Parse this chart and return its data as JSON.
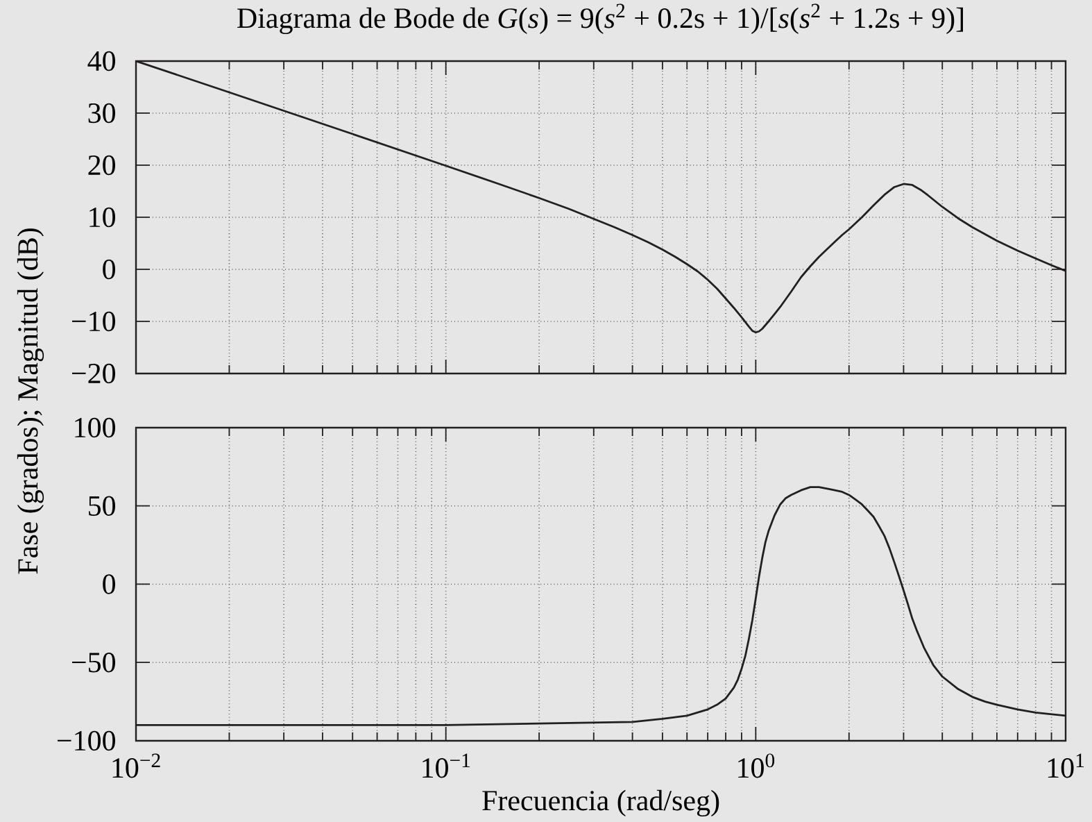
{
  "chart_data": [
    {
      "type": "line",
      "title": "Diagrama de Bode de *G*(*s*) = 9(*s*$^{2}$ + 0.2s + 1)/[*s*(*s*$^{2}$ + 1.2s + 9)]",
      "ylabel": "Fase (grados); Magnitud (dB)",
      "x": [
        0.01,
        0.02,
        0.05,
        0.1,
        0.15,
        0.2,
        0.25,
        0.3,
        0.35,
        0.4,
        0.45,
        0.5,
        0.55,
        0.6,
        0.65,
        0.7,
        0.75,
        0.8,
        0.85,
        0.9,
        0.95,
        0.975,
        1.0,
        1.025,
        1.05,
        1.1,
        1.15,
        1.2,
        1.3,
        1.4,
        1.5,
        1.6,
        1.7,
        1.8,
        1.9,
        2.0,
        2.2,
        2.4,
        2.6,
        2.8,
        3.0,
        3.2,
        3.4,
        3.6,
        4.0,
        4.5,
        5.0,
        6.0,
        7.0,
        8.0,
        9.0,
        10.0
      ],
      "series": [
        {
          "color": "#231f20",
          "values": [
            40.0,
            34.0,
            26.0,
            19.9,
            16.3,
            13.7,
            11.6,
            9.7,
            8.1,
            6.6,
            5.2,
            3.8,
            2.4,
            1.0,
            -0.4,
            -2.0,
            -3.7,
            -5.6,
            -7.4,
            -9.2,
            -11.0,
            -11.8,
            -12.1,
            -11.9,
            -11.4,
            -10.0,
            -8.6,
            -7.2,
            -4.3,
            -1.5,
            0.6,
            2.4,
            3.9,
            5.3,
            6.6,
            7.7,
            10.0,
            12.3,
            14.3,
            15.8,
            16.4,
            16.2,
            15.3,
            14.2,
            12.0,
            9.8,
            8.1,
            5.5,
            3.6,
            2.1,
            0.8,
            -0.3
          ]
        }
      ],
      "xlim": [
        0.01,
        10
      ],
      "ylim": [
        -20,
        40
      ],
      "xticks": [
        {
          "value": 0.01,
          "label": null
        },
        {
          "value": 0.1,
          "label": null
        },
        {
          "value": 1,
          "label": null
        },
        {
          "value": 10,
          "label": null
        }
      ],
      "yticks": [
        {
          "value": -20,
          "label": "−20"
        },
        {
          "value": -10,
          "label": "−10"
        },
        0,
        10,
        20,
        30,
        40
      ],
      "log": "x",
      "grid": true,
      "tick_labels": "y",
      "line_style": "solid"
    },
    {
      "type": "line",
      "xlabel": "Frecuencia (rad/seg)",
      "x": [
        0.01,
        0.1,
        0.2,
        0.4,
        0.5,
        0.6,
        0.7,
        0.75,
        0.8,
        0.85,
        0.875,
        0.9,
        0.925,
        0.95,
        0.975,
        1.0,
        1.025,
        1.05,
        1.075,
        1.1,
        1.15,
        1.2,
        1.25,
        1.3,
        1.4,
        1.5,
        1.6,
        1.7,
        1.8,
        1.9,
        2.0,
        2.1,
        2.2,
        2.3,
        2.4,
        2.5,
        2.6,
        2.7,
        2.8,
        2.9,
        3.0,
        3.1,
        3.2,
        3.3,
        3.5,
        3.75,
        4.0,
        4.5,
        5.0,
        5.5,
        6.0,
        7.0,
        8.0,
        10.0
      ],
      "series": [
        {
          "color": "#231f20",
          "values": [
            -90,
            -90,
            -89,
            -88,
            -86,
            -84,
            -80,
            -77,
            -73,
            -66,
            -61,
            -54,
            -46,
            -35,
            -23,
            -9,
            5,
            17,
            27,
            34,
            44,
            51,
            55,
            57,
            60,
            62,
            62,
            61,
            60,
            59,
            57,
            54,
            51,
            47,
            43,
            37,
            31,
            23,
            14,
            5,
            -4,
            -13,
            -22,
            -29,
            -41,
            -52,
            -59,
            -67,
            -72,
            -75,
            -77,
            -80,
            -82,
            -84
          ]
        }
      ],
      "xlim": [
        0.01,
        10
      ],
      "ylim": [
        -100,
        100
      ],
      "xticks": [
        {
          "value": 0.01,
          "label": "10$^{−2}$"
        },
        {
          "value": 0.1,
          "label": "10$^{−1}$"
        },
        {
          "value": 1,
          "label": "10$^{0}$"
        },
        {
          "value": 10,
          "label": "10$^{1}$"
        }
      ],
      "yticks": [
        {
          "value": -100,
          "label": "−100"
        },
        {
          "value": -50,
          "label": "−50"
        },
        0,
        50,
        100
      ],
      "log": "x",
      "grid": true,
      "line_style": "solid"
    }
  ]
}
